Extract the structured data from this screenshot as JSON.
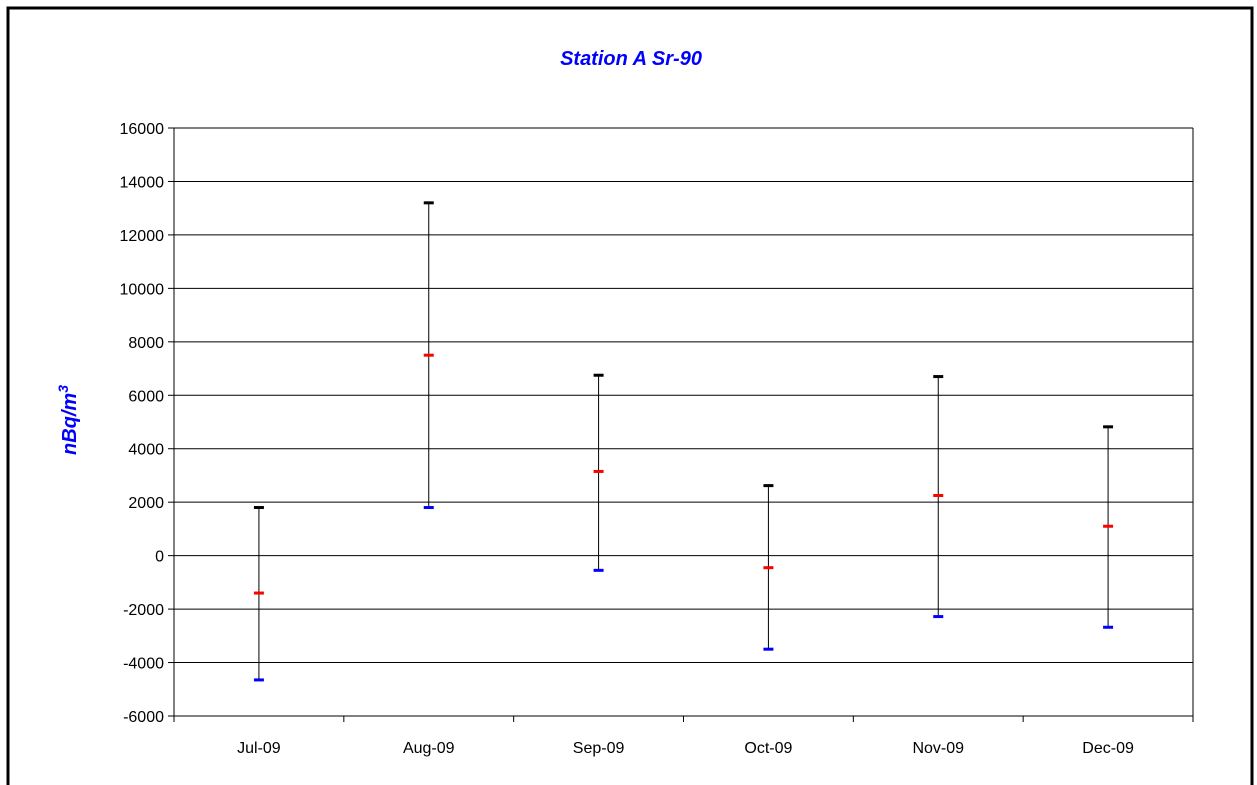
{
  "chart_data": {
    "type": "error-bar",
    "title": "Station A Sr-90",
    "ylabel": "nBq/m",
    "ylabel_superscript": "3",
    "xlabel": "",
    "categories": [
      "Jul-09",
      "Aug-09",
      "Sep-09",
      "Oct-09",
      "Nov-09",
      "Dec-09"
    ],
    "y_ticks": [
      "16000",
      "14000",
      "12000",
      "10000",
      "8000",
      "6000",
      "4000",
      "2000",
      "0",
      "-2000",
      "-4000",
      "-6000"
    ],
    "ylim": [
      -6000,
      16000
    ],
    "series": [
      {
        "name": "",
        "role": "high",
        "color": "#000000",
        "values": [
          1800,
          13200,
          6750,
          2620,
          6700,
          4820
        ]
      },
      {
        "name": "",
        "role": "value",
        "color": "#ff0000",
        "values": [
          -1400,
          7500,
          3150,
          -450,
          2250,
          1100
        ]
      },
      {
        "name": "",
        "role": "low",
        "color": "#0000ff",
        "values": [
          -4650,
          1800,
          -550,
          -3500,
          -2280,
          -2680
        ]
      }
    ],
    "grid": true,
    "legend": "none",
    "colors": {
      "title": "#0000ff",
      "ylabel": "#0000ff",
      "grid": "#000000"
    }
  }
}
